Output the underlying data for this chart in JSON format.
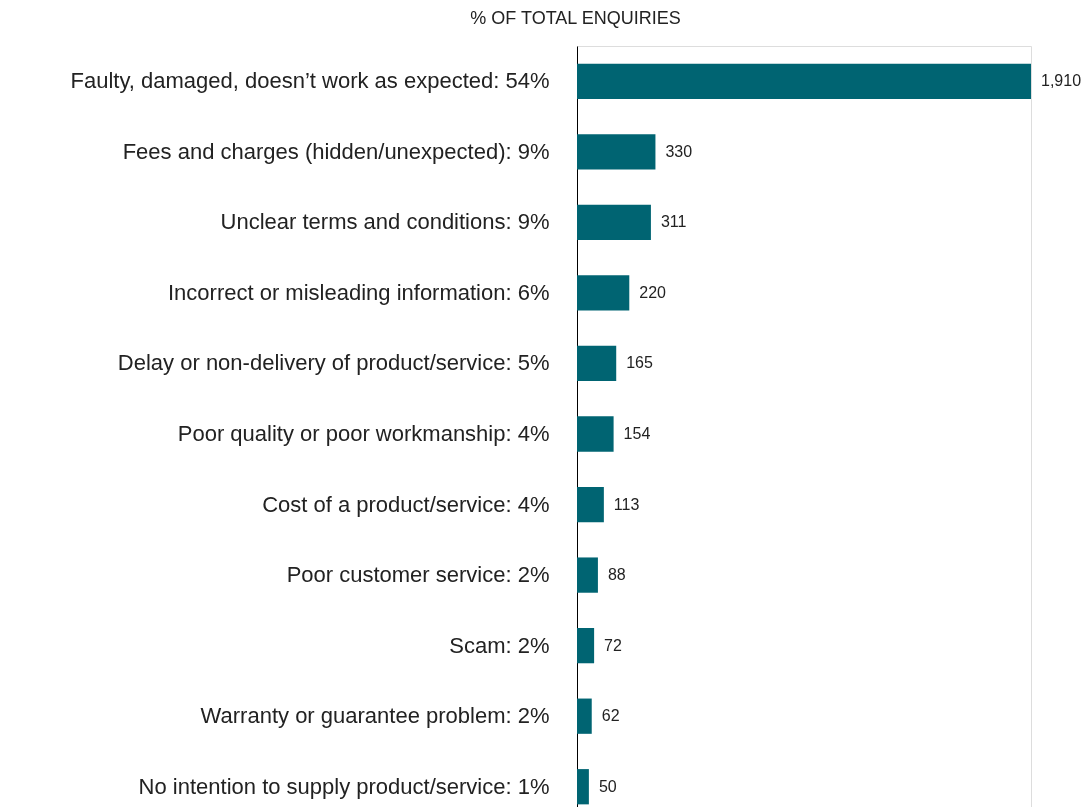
{
  "chart_data": {
    "type": "bar",
    "orientation": "horizontal",
    "title": "% OF TOTAL ENQUIRIES",
    "categories": [
      "Faulty, damaged, doesn’t work as expected: 54%",
      "Fees and charges (hidden/unexpected): 9%",
      "Unclear terms and conditions: 9%",
      "Incorrect or misleading information: 6%",
      "Delay or non-delivery of product/service: 5%",
      "Poor quality or poor workmanship: 4%",
      "Cost of a product/service: 4%",
      "Poor customer service: 2%",
      "Scam: 2%",
      "Warranty or guarantee problem: 2%",
      "No intention to supply product/service: 1%"
    ],
    "values": [
      1910,
      330,
      311,
      220,
      165,
      154,
      113,
      88,
      72,
      62,
      50
    ],
    "value_labels": [
      "1,910",
      "330",
      "311",
      "220",
      "165",
      "154",
      "113",
      "88",
      "72",
      "62",
      "50"
    ],
    "color": "#006472"
  }
}
